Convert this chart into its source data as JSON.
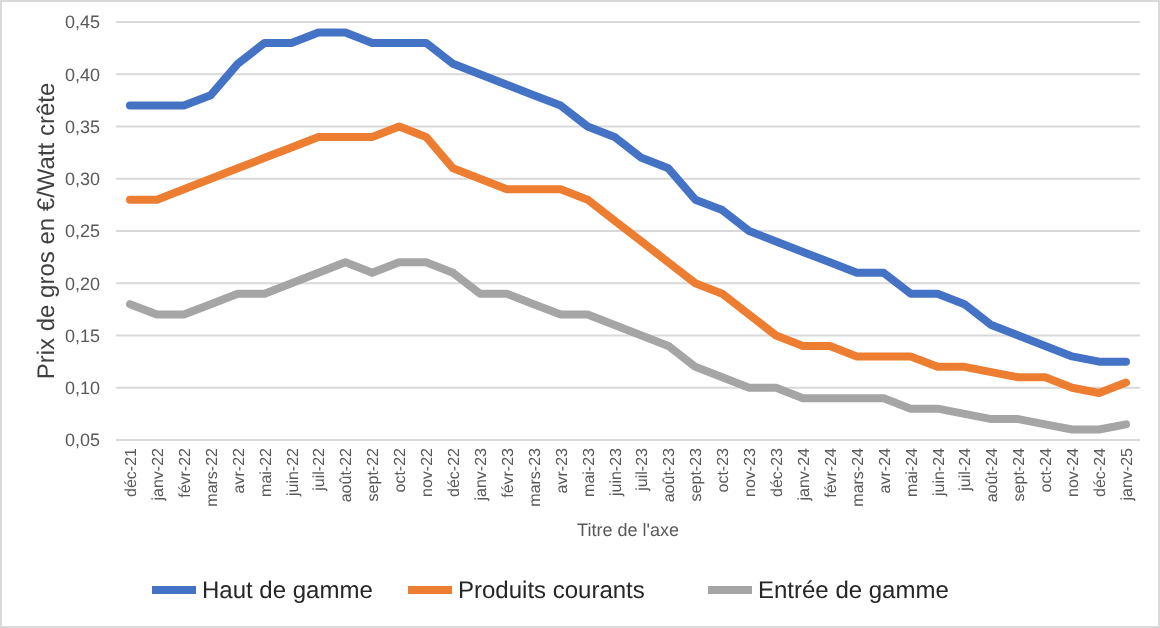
{
  "chart_data": {
    "type": "line",
    "xlabel": "Titre de l'axe",
    "ylabel": "Prix de gros en €/Watt crête",
    "categories": [
      "déc-21",
      "janv-22",
      "févr-22",
      "mars-22",
      "avr-22",
      "mai-22",
      "juin-22",
      "juil-22",
      "août-22",
      "sept-22",
      "oct-22",
      "nov-22",
      "déc-22",
      "janv-23",
      "févr-23",
      "mars-23",
      "avr-23",
      "mai-23",
      "juin-23",
      "juil-23",
      "août-23",
      "sept-23",
      "oct-23",
      "nov-23",
      "déc-23",
      "janv-24",
      "févr-24",
      "mars-24",
      "avr-24",
      "mai-24",
      "juin-24",
      "juil-24",
      "août-24",
      "sept-24",
      "oct-24",
      "nov-24",
      "déc-24",
      "janv-25"
    ],
    "series": [
      {
        "name": "Haut de gamme",
        "color": "#4472c4",
        "values": [
          0.37,
          0.37,
          0.37,
          0.38,
          0.41,
          0.43,
          0.43,
          0.44,
          0.44,
          0.43,
          0.43,
          0.43,
          0.41,
          0.4,
          0.39,
          0.38,
          0.37,
          0.35,
          0.34,
          0.32,
          0.31,
          0.28,
          0.27,
          0.25,
          0.24,
          0.23,
          0.22,
          0.21,
          0.21,
          0.19,
          0.19,
          0.18,
          0.16,
          0.15,
          0.14,
          0.13,
          0.125,
          0.125
        ]
      },
      {
        "name": "Produits courants",
        "color": "#ed7d31",
        "values": [
          0.28,
          0.28,
          0.29,
          0.3,
          0.31,
          0.32,
          0.33,
          0.34,
          0.34,
          0.34,
          0.35,
          0.34,
          0.31,
          0.3,
          0.29,
          0.29,
          0.29,
          0.28,
          0.26,
          0.24,
          0.22,
          0.2,
          0.19,
          0.17,
          0.15,
          0.14,
          0.14,
          0.13,
          0.13,
          0.13,
          0.12,
          0.12,
          0.115,
          0.11,
          0.11,
          0.1,
          0.095,
          0.105
        ]
      },
      {
        "name": "Entrée de gamme",
        "color": "#a5a5a5",
        "values": [
          0.18,
          0.17,
          0.17,
          0.18,
          0.19,
          0.19,
          0.2,
          0.21,
          0.22,
          0.21,
          0.22,
          0.22,
          0.21,
          0.19,
          0.19,
          0.18,
          0.17,
          0.17,
          0.16,
          0.15,
          0.14,
          0.12,
          0.11,
          0.1,
          0.1,
          0.09,
          0.09,
          0.09,
          0.09,
          0.08,
          0.08,
          0.075,
          0.07,
          0.07,
          0.065,
          0.06,
          0.06,
          0.065
        ]
      }
    ],
    "ylim": [
      0.05,
      0.45
    ],
    "yticks": [
      {
        "value": 0.05,
        "label": "0,05"
      },
      {
        "value": 0.1,
        "label": "0,10"
      },
      {
        "value": 0.15,
        "label": "0,15"
      },
      {
        "value": 0.2,
        "label": "0,20"
      },
      {
        "value": 0.25,
        "label": "0,25"
      },
      {
        "value": 0.3,
        "label": "0,30"
      },
      {
        "value": 0.35,
        "label": "0,35"
      },
      {
        "value": 0.4,
        "label": "0,40"
      },
      {
        "value": 0.45,
        "label": "0,45"
      }
    ],
    "grid": "y",
    "legend": "bottom",
    "marker": "none",
    "line_style": "solid"
  }
}
